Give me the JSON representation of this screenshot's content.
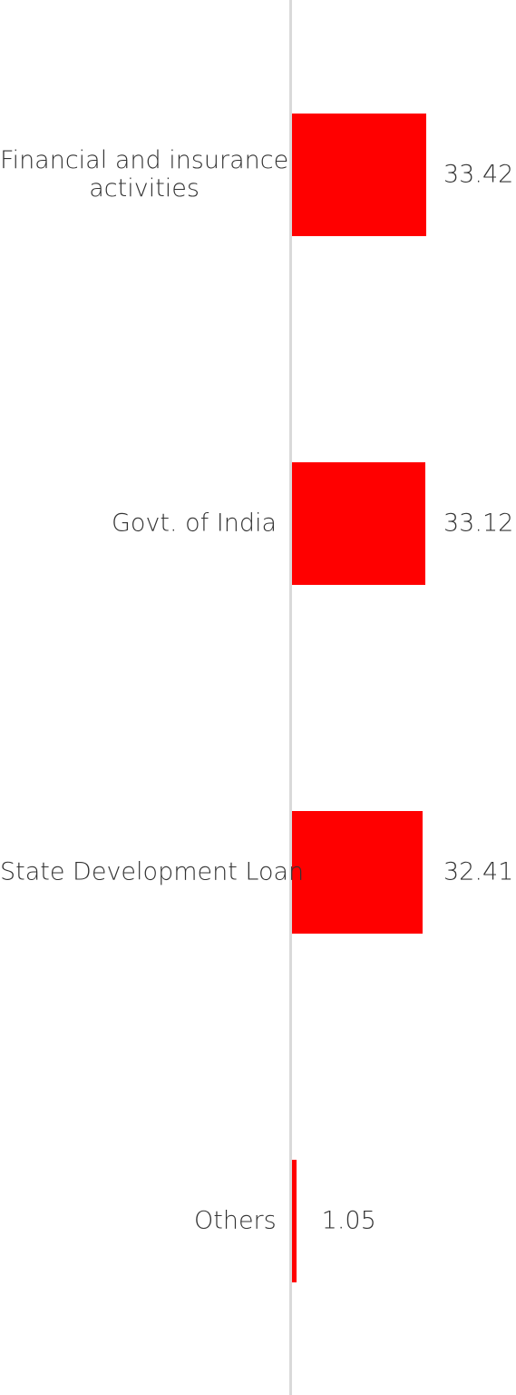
{
  "chart_data": {
    "type": "bar",
    "orientation": "horizontal",
    "title": "",
    "xlabel": "",
    "ylabel": "",
    "categories": [
      "Financial and insurance\nactivities",
      "Govt. of India",
      "State Development Loan",
      "Others"
    ],
    "values": [
      33.42,
      33.12,
      32.41,
      1.05
    ],
    "value_labels": [
      "33.42",
      "33.12",
      "32.41",
      "1.05"
    ],
    "xlim": [
      0,
      33.42
    ],
    "grid": false,
    "legend": "none",
    "colors": {
      "bar": "#ff0000",
      "axis": "#d9d9d9",
      "text": "#333333"
    }
  }
}
